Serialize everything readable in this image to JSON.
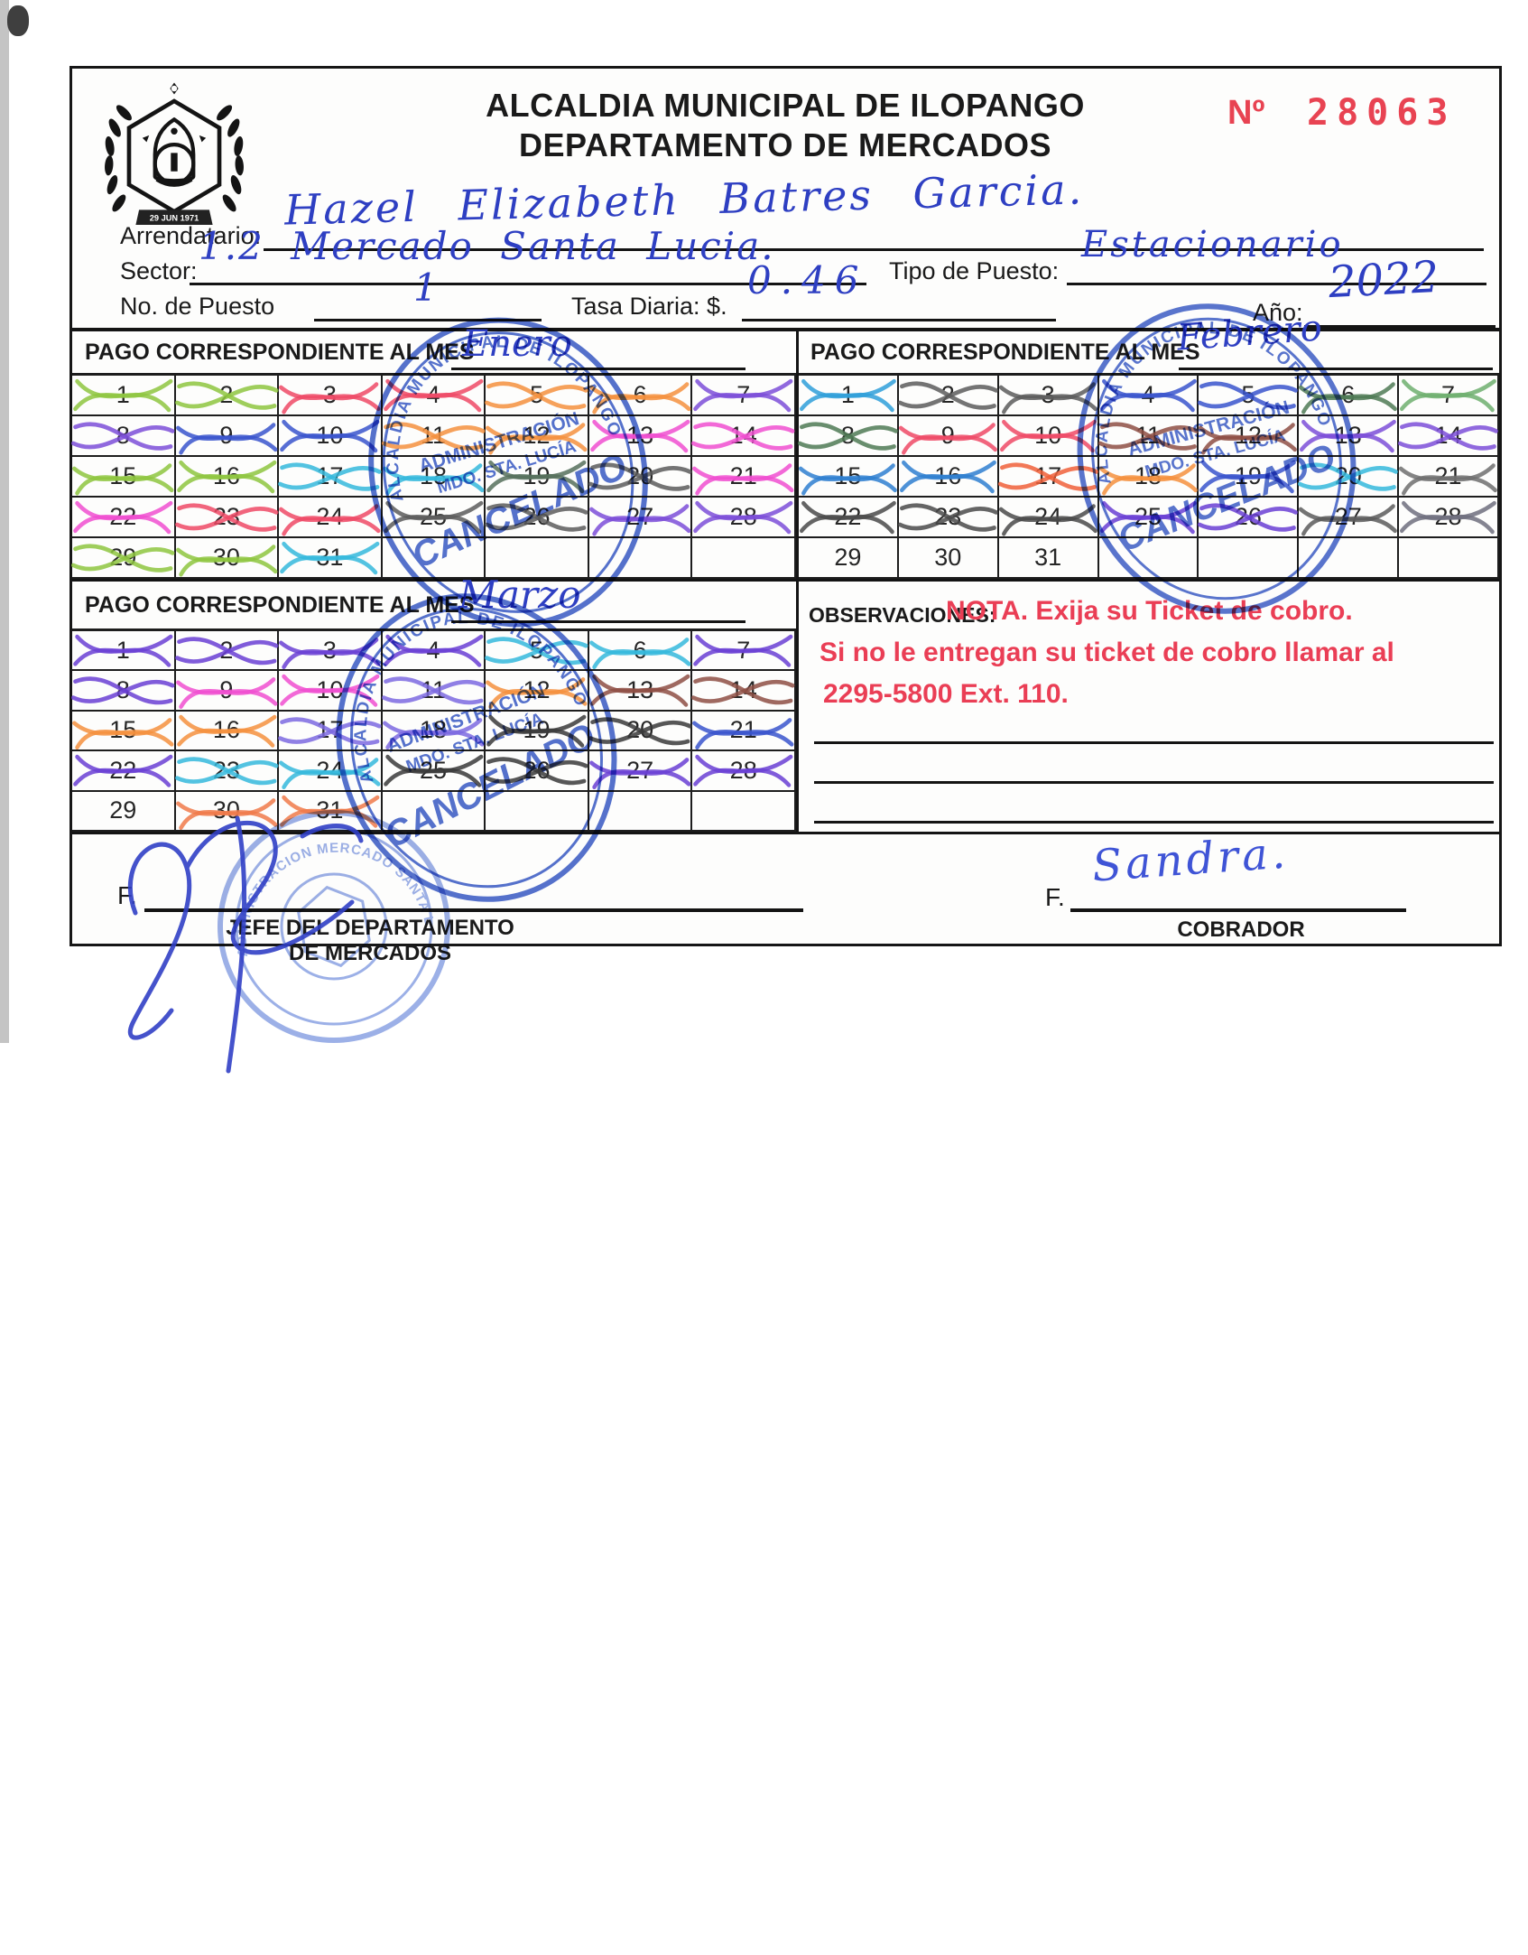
{
  "header": {
    "title_line1": "ALCALDIA MUNICIPAL DE ILOPANGO",
    "title_line2": "DEPARTAMENTO DE MERCADOS",
    "number_prefix": "Nº",
    "number": "28063",
    "number_color": "#e84352",
    "seal_date": "29 JUN 1971"
  },
  "fields": {
    "arrendatario_label": "Arrendatario:",
    "arrendatario_value": "Hazel Elizabeth Batres Garcia.",
    "sector_label": "Sector:",
    "sector_value": "1.2 Mercado Santa Lucia.",
    "tipo_label": "Tipo de Puesto:",
    "tipo_value": "Estacionario",
    "puesto_label": "No. de Puesto",
    "puesto_value": "1",
    "tasa_label": "Tasa Diaria: $.",
    "tasa_value": "0.46",
    "anio_label": "Año:",
    "anio_value": "2022"
  },
  "months": [
    {
      "label": "PAGO CORRESPONDIENTE AL MES",
      "month": "Enero",
      "days": [
        {
          "n": 1,
          "mark": "#8ec63f"
        },
        {
          "n": 2,
          "mark": "#8ec63f"
        },
        {
          "n": 3,
          "mark": "#ee4a66"
        },
        {
          "n": 4,
          "mark": "#ee4a66"
        },
        {
          "n": 5,
          "mark": "#f5913e"
        },
        {
          "n": 6,
          "mark": "#f5913e"
        },
        {
          "n": 7,
          "mark": "#7d4fd8"
        },
        {
          "n": 8,
          "mark": "#7d4fd8"
        },
        {
          "n": 9,
          "mark": "#3a55cc"
        },
        {
          "n": 10,
          "mark": "#3a55cc"
        },
        {
          "n": 11,
          "mark": "#f5913e"
        },
        {
          "n": 12,
          "mark": "#f5913e"
        },
        {
          "n": 13,
          "mark": "#f04fd0"
        },
        {
          "n": 14,
          "mark": "#f04fd0"
        },
        {
          "n": 15,
          "mark": "#8ec63f"
        },
        {
          "n": 16,
          "mark": "#8ec63f"
        },
        {
          "n": 17,
          "mark": "#35b8dc"
        },
        {
          "n": 18,
          "mark": "#35b8dc"
        },
        {
          "n": 19,
          "mark": "#56705c"
        },
        {
          "n": 20,
          "mark": "#5c5c5c"
        },
        {
          "n": 21,
          "mark": "#f04fd0"
        },
        {
          "n": 22,
          "mark": "#f04fd0"
        },
        {
          "n": 23,
          "mark": "#ee4a66"
        },
        {
          "n": 24,
          "mark": "#ee4a66"
        },
        {
          "n": 25,
          "mark": "#5c5c5c"
        },
        {
          "n": 26,
          "mark": "#5c5c5c"
        },
        {
          "n": 27,
          "mark": "#7d4fd8"
        },
        {
          "n": 28,
          "mark": "#7d4fd8"
        },
        {
          "n": 29,
          "mark": "#8ec63f"
        },
        {
          "n": 30,
          "mark": "#8ec63f"
        },
        {
          "n": 31,
          "mark": "#35b8dc"
        }
      ]
    },
    {
      "label": "PAGO CORRESPONDIENTE AL MES",
      "month": "Febrero",
      "days": [
        {
          "n": 1,
          "mark": "#2f9fd9"
        },
        {
          "n": 2,
          "mark": "#5c5c5c"
        },
        {
          "n": 3,
          "mark": "#5c5c5c"
        },
        {
          "n": 4,
          "mark": "#3a55cc"
        },
        {
          "n": 5,
          "mark": "#3a55cc"
        },
        {
          "n": 6,
          "mark": "#4f7a55"
        },
        {
          "n": 7,
          "mark": "#6faf6f"
        },
        {
          "n": 8,
          "mark": "#4f7a55"
        },
        {
          "n": 9,
          "mark": "#ee4a66"
        },
        {
          "n": 10,
          "mark": "#ee4a66"
        },
        {
          "n": 11,
          "mark": "#8e4f44"
        },
        {
          "n": 12,
          "mark": "#8e4f44"
        },
        {
          "n": 13,
          "mark": "#7d4fd8"
        },
        {
          "n": 14,
          "mark": "#7d4fd8"
        },
        {
          "n": 15,
          "mark": "#2f7fd0"
        },
        {
          "n": 16,
          "mark": "#2f7fd0"
        },
        {
          "n": 17,
          "mark": "#f0603a"
        },
        {
          "n": 18,
          "mark": "#f5913e"
        },
        {
          "n": 19,
          "mark": "#3a55cc"
        },
        {
          "n": 20,
          "mark": "#35b8dc"
        },
        {
          "n": 21,
          "mark": "#6e6e6e"
        },
        {
          "n": 22,
          "mark": "#4a4a4a"
        },
        {
          "n": 23,
          "mark": "#4a4a4a"
        },
        {
          "n": 24,
          "mark": "#4a4a4a"
        },
        {
          "n": 25,
          "mark": "#6a3fd4"
        },
        {
          "n": 26,
          "mark": "#6a3fd4"
        },
        {
          "n": 27,
          "mark": "#5c5c5c"
        },
        {
          "n": 28,
          "mark": "#6e6e7e"
        },
        {
          "n": 29,
          "mark": null
        },
        {
          "n": 30,
          "mark": null
        },
        {
          "n": 31,
          "mark": null
        }
      ]
    },
    {
      "label": "PAGO CORRESPONDIENTE AL MES",
      "month": "Marzo",
      "days": [
        {
          "n": 1,
          "mark": "#6a3fd4"
        },
        {
          "n": 2,
          "mark": "#6a3fd4"
        },
        {
          "n": 3,
          "mark": "#6a3fd4"
        },
        {
          "n": 4,
          "mark": "#6a3fd4"
        },
        {
          "n": 5,
          "mark": "#35b8dc"
        },
        {
          "n": 6,
          "mark": "#35b8dc"
        },
        {
          "n": 7,
          "mark": "#6a3fd4"
        },
        {
          "n": 8,
          "mark": "#6a3fd4"
        },
        {
          "n": 9,
          "mark": "#f04fd0"
        },
        {
          "n": 10,
          "mark": "#f04fd0"
        },
        {
          "n": 11,
          "mark": "#7d6ae0"
        },
        {
          "n": 12,
          "mark": "#f5913e"
        },
        {
          "n": 13,
          "mark": "#8e4f44"
        },
        {
          "n": 14,
          "mark": "#8e4f44"
        },
        {
          "n": 15,
          "mark": "#f5913e"
        },
        {
          "n": 16,
          "mark": "#f5913e"
        },
        {
          "n": 17,
          "mark": "#7d6ae0"
        },
        {
          "n": 18,
          "mark": "#7d6ae0"
        },
        {
          "n": 19,
          "mark": "#3a3a3a"
        },
        {
          "n": 20,
          "mark": "#3a3a3a"
        },
        {
          "n": 21,
          "mark": "#3a55cc"
        },
        {
          "n": 22,
          "mark": "#6a3fd4"
        },
        {
          "n": 23,
          "mark": "#35b8dc"
        },
        {
          "n": 24,
          "mark": "#35b8dc"
        },
        {
          "n": 25,
          "mark": "#3a3a3a"
        },
        {
          "n": 26,
          "mark": "#3a3a3a"
        },
        {
          "n": 27,
          "mark": "#6a3fd4"
        },
        {
          "n": 28,
          "mark": "#6a3fd4"
        },
        {
          "n": 29,
          "mark": null
        },
        {
          "n": 30,
          "mark": "#f07a4a"
        },
        {
          "n": 31,
          "mark": "#f07a4a"
        }
      ]
    }
  ],
  "observations": {
    "label": "OBSERVACIONES:",
    "nota_line1": "NOTA. Exija su Ticket de cobro.",
    "nota_line2": "Si no le entregan su ticket de cobro llamar al",
    "nota_line3": "2295-5800 Ext. 110.",
    "color": "#ea3e55"
  },
  "signatures": {
    "left_f": "F.",
    "left_role_line1": "JEFE DEL DEPARTAMENTO",
    "left_role_line2": "DE MERCADOS",
    "right_f": "F.",
    "right_value": "Sandra.",
    "right_role": "COBRADOR"
  },
  "stamps": {
    "ring_text": "ALCALDIA MUNICIPAL DE ILOPANGO",
    "line1": "ADMINISTRACIÓN",
    "line2": "MDO. STA. LUCÍA",
    "cancel": "CANCELADO",
    "round_text": "ADMINISTRACION MERCADO SANTA LUCIA",
    "color": "#2b4ec2"
  }
}
